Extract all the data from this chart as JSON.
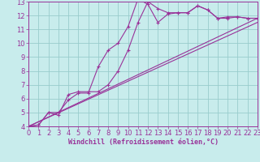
{
  "background_color": "#c8ecec",
  "grid_color": "#99cccc",
  "line_color": "#993399",
  "spine_color": "#993399",
  "xlim": [
    0,
    23
  ],
  "ylim": [
    4,
    13
  ],
  "xticks": [
    0,
    1,
    2,
    3,
    4,
    5,
    6,
    7,
    8,
    9,
    10,
    11,
    12,
    13,
    14,
    15,
    16,
    17,
    18,
    19,
    20,
    21,
    22,
    23
  ],
  "yticks": [
    4,
    5,
    6,
    7,
    8,
    9,
    10,
    11,
    12,
    13
  ],
  "xlabel": "Windchill (Refroidissement éolien,°C)",
  "line1_x": [
    0,
    1,
    2,
    3,
    4,
    5,
    6,
    7,
    8,
    9,
    10,
    11,
    12,
    13,
    14,
    15,
    16,
    17,
    18,
    19,
    20,
    21,
    22,
    23
  ],
  "line1_y": [
    4.0,
    4.1,
    5.0,
    5.0,
    5.9,
    6.4,
    6.4,
    8.3,
    9.5,
    10.0,
    11.2,
    13.2,
    12.8,
    11.5,
    12.1,
    12.2,
    12.2,
    12.7,
    12.4,
    11.8,
    11.8,
    11.9,
    11.8,
    11.8
  ],
  "line2_x": [
    0,
    1,
    2,
    3,
    4,
    5,
    6,
    7,
    8,
    9,
    10,
    11,
    12,
    13,
    14,
    15,
    16,
    17,
    18,
    19,
    20,
    21,
    22,
    23
  ],
  "line2_y": [
    4.0,
    4.1,
    5.0,
    4.8,
    6.3,
    6.5,
    6.5,
    6.5,
    7.0,
    8.0,
    9.5,
    11.5,
    13.0,
    12.5,
    12.2,
    12.2,
    12.2,
    12.7,
    12.4,
    11.8,
    11.9,
    11.9,
    11.8,
    11.8
  ],
  "line3_x": [
    0,
    23
  ],
  "line3_y": [
    4.0,
    11.8
  ],
  "line4_x": [
    0,
    23
  ],
  "line4_y": [
    4.0,
    11.5
  ],
  "tick_fontsize": 6,
  "xlabel_fontsize": 6
}
